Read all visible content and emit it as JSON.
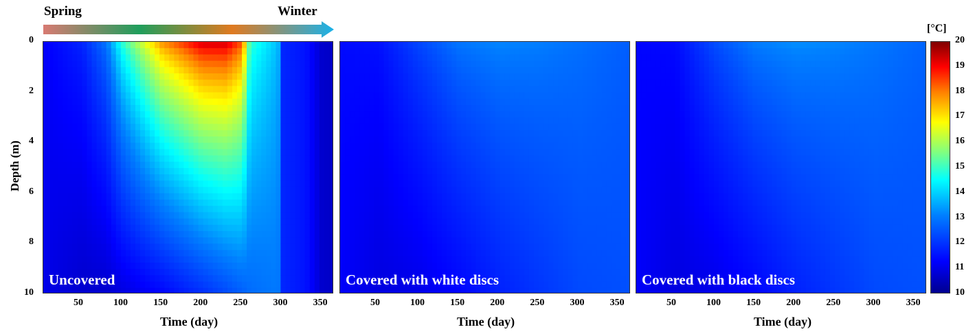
{
  "season_arrow": {
    "start_label": "Spring",
    "end_label": "Winter",
    "colors": [
      "#d87a72",
      "#1f9e5c",
      "#e07a20",
      "#19b2ea"
    ]
  },
  "unit_label": "[°C]",
  "chart_data": [
    {
      "type": "heatmap",
      "panel_label": "Uncovered",
      "xlabel": "Time (day)",
      "ylabel": "Depth (m)",
      "x_ticks": [
        "50",
        "100",
        "150",
        "200",
        "250",
        "300",
        "350"
      ],
      "y_ticks": [
        "0",
        "2",
        "4",
        "6",
        "8",
        "10"
      ],
      "xlim": [
        1,
        365
      ],
      "ylim": [
        10,
        0
      ],
      "clim": [
        10,
        20
      ],
      "profile": [
        [
          1,
          11.2,
          11.0
        ],
        [
          50,
          11.8,
          10.7
        ],
        [
          80,
          13.0,
          10.7
        ],
        [
          100,
          15.0,
          10.9
        ],
        [
          150,
          18.0,
          11.3
        ],
        [
          200,
          19.5,
          11.9
        ],
        [
          230,
          19.5,
          12.3
        ],
        [
          250,
          18.5,
          12.6
        ],
        [
          260,
          15.0,
          12.8
        ],
        [
          295,
          13.8,
          13.0
        ],
        [
          300,
          11.8,
          11.8
        ],
        [
          330,
          11.5,
          11.5
        ],
        [
          350,
          10.7,
          10.7
        ],
        [
          365,
          10.6,
          10.6
        ]
      ],
      "colorscale": "jet"
    },
    {
      "type": "heatmap",
      "panel_label": "Covered with white discs",
      "xlabel": "Time (day)",
      "ylabel": "",
      "x_ticks": [
        "50",
        "100",
        "150",
        "200",
        "250",
        "300",
        "350"
      ],
      "y_ticks": [],
      "xlim": [
        1,
        365
      ],
      "ylim": [
        10,
        0
      ],
      "clim": [
        10,
        20
      ],
      "profile": [
        [
          1,
          11.4,
          11.2
        ],
        [
          50,
          11.5,
          10.9
        ],
        [
          100,
          12.3,
          11.0
        ],
        [
          150,
          13.0,
          11.3
        ],
        [
          200,
          13.2,
          11.7
        ],
        [
          250,
          13.1,
          12.0
        ],
        [
          300,
          12.9,
          12.3
        ],
        [
          365,
          12.6,
          12.4
        ]
      ],
      "colorscale": "jet"
    },
    {
      "type": "heatmap",
      "panel_label": "Covered with black discs",
      "xlabel": "Time (day)",
      "ylabel": "",
      "x_ticks": [
        "50",
        "100",
        "150",
        "200",
        "250",
        "300",
        "350"
      ],
      "y_ticks": [],
      "xlim": [
        1,
        365
      ],
      "ylim": [
        10,
        0
      ],
      "clim": [
        10,
        20
      ],
      "profile": [
        [
          1,
          11.3,
          11.2
        ],
        [
          50,
          11.4,
          10.9
        ],
        [
          100,
          12.4,
          11.0
        ],
        [
          150,
          13.1,
          11.3
        ],
        [
          200,
          13.3,
          11.7
        ],
        [
          250,
          13.2,
          12.0
        ],
        [
          300,
          13.0,
          12.3
        ],
        [
          365,
          12.7,
          12.4
        ]
      ],
      "colorscale": "jet"
    }
  ],
  "colorbar": {
    "ticks": [
      "20",
      "19",
      "18",
      "17",
      "16",
      "15",
      "14",
      "13",
      "12",
      "11",
      "10"
    ],
    "range": [
      10,
      20
    ]
  }
}
